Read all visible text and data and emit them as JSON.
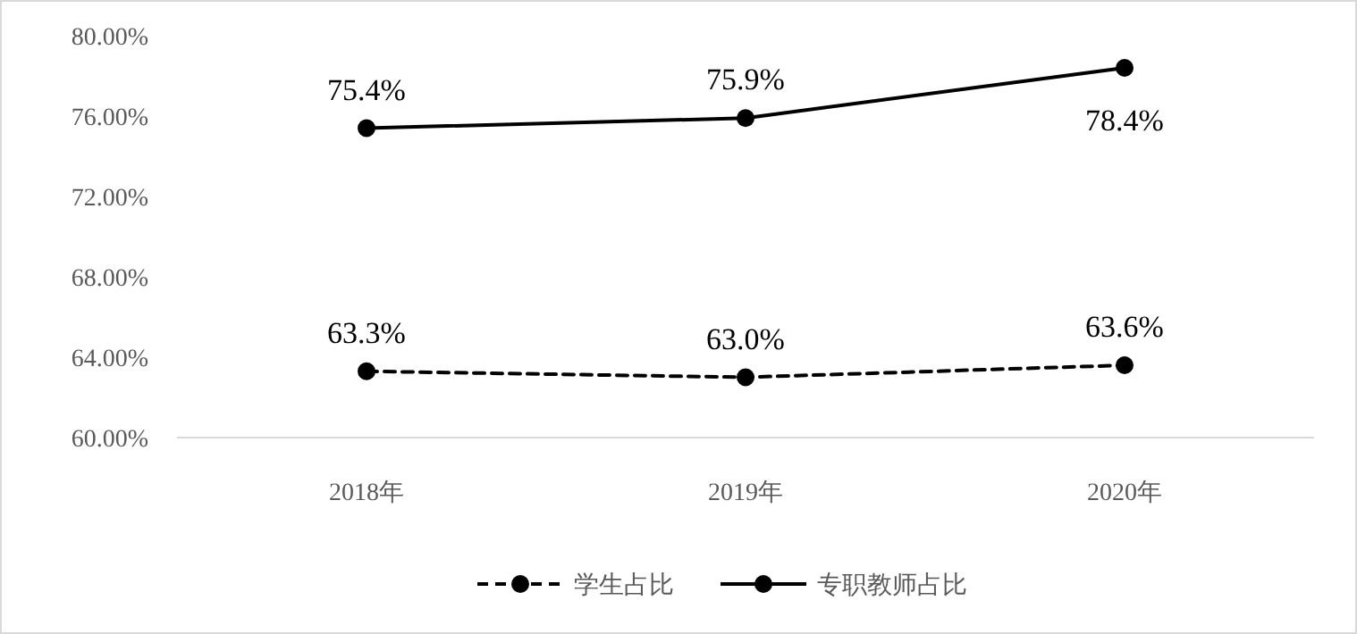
{
  "chart_data": {
    "type": "line",
    "categories": [
      "2018年",
      "2019年",
      "2020年"
    ],
    "series": [
      {
        "name": "学生占比",
        "color": "#000000",
        "line_style": "dashed",
        "values": [
          63.3,
          63.0,
          63.6
        ],
        "value_labels": [
          "63.3%",
          "63.0%",
          "63.6%"
        ]
      },
      {
        "name": "专职教师占比",
        "color": "#000000",
        "line_style": "solid",
        "values": [
          75.4,
          75.9,
          78.4
        ],
        "value_labels": [
          "75.4%",
          "75.9%",
          "78.4%"
        ]
      }
    ],
    "ylim": [
      60,
      80
    ],
    "yticks": [
      {
        "value": 60,
        "label": "60.00%"
      },
      {
        "value": 64,
        "label": "64.00%"
      },
      {
        "value": 68,
        "label": "68.00%"
      },
      {
        "value": 72,
        "label": "72.00%"
      },
      {
        "value": 76,
        "label": "76.00%"
      },
      {
        "value": 80,
        "label": "80.00%"
      }
    ],
    "marker": "circle",
    "legend": "bottom"
  }
}
